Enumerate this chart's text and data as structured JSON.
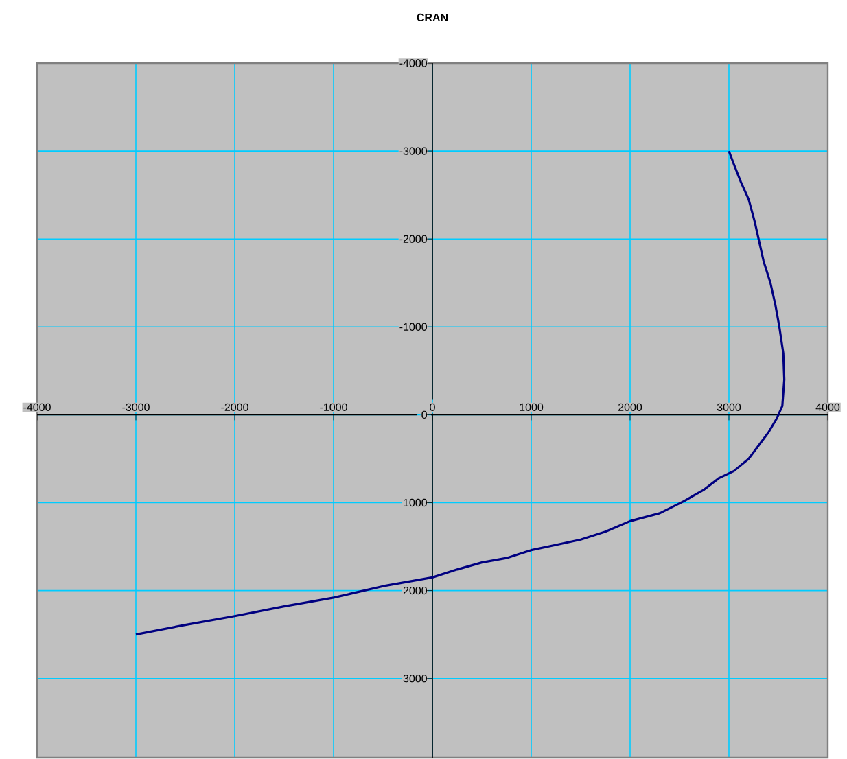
{
  "chart_data": {
    "type": "line",
    "title": "CRAN",
    "color": "#000080",
    "x": [
      3000,
      3050,
      3120,
      3200,
      3260,
      3300,
      3350,
      3420,
      3470,
      3510,
      3550,
      3560,
      3540,
      3480,
      3400,
      3300,
      3200,
      3050,
      2900,
      2750,
      2550,
      2300,
      2000,
      1750,
      1500,
      1250,
      1000,
      750,
      500,
      250,
      0,
      -500,
      -1000,
      -1500,
      -2000,
      -2500,
      -3000
    ],
    "values": [
      -3000,
      -2850,
      -2650,
      -2450,
      -2200,
      -2000,
      -1750,
      -1500,
      -1250,
      -1000,
      -700,
      -400,
      -100,
      50,
      200,
      350,
      500,
      640,
      720,
      850,
      980,
      1120,
      1210,
      1330,
      1420,
      1480,
      1540,
      1630,
      1680,
      1760,
      1850,
      1950,
      2080,
      2180,
      2290,
      2390,
      2500
    ],
    "xlim": [
      -4000,
      4000
    ],
    "ylim": [
      3900,
      -4000
    ],
    "xticks": [
      -4000,
      -3000,
      -2000,
      -1000,
      0,
      1000,
      2000,
      3000,
      4000
    ],
    "yticks": [
      -4000,
      -3000,
      -2000,
      -1000,
      0,
      1000,
      2000,
      3000
    ],
    "grid": true
  }
}
